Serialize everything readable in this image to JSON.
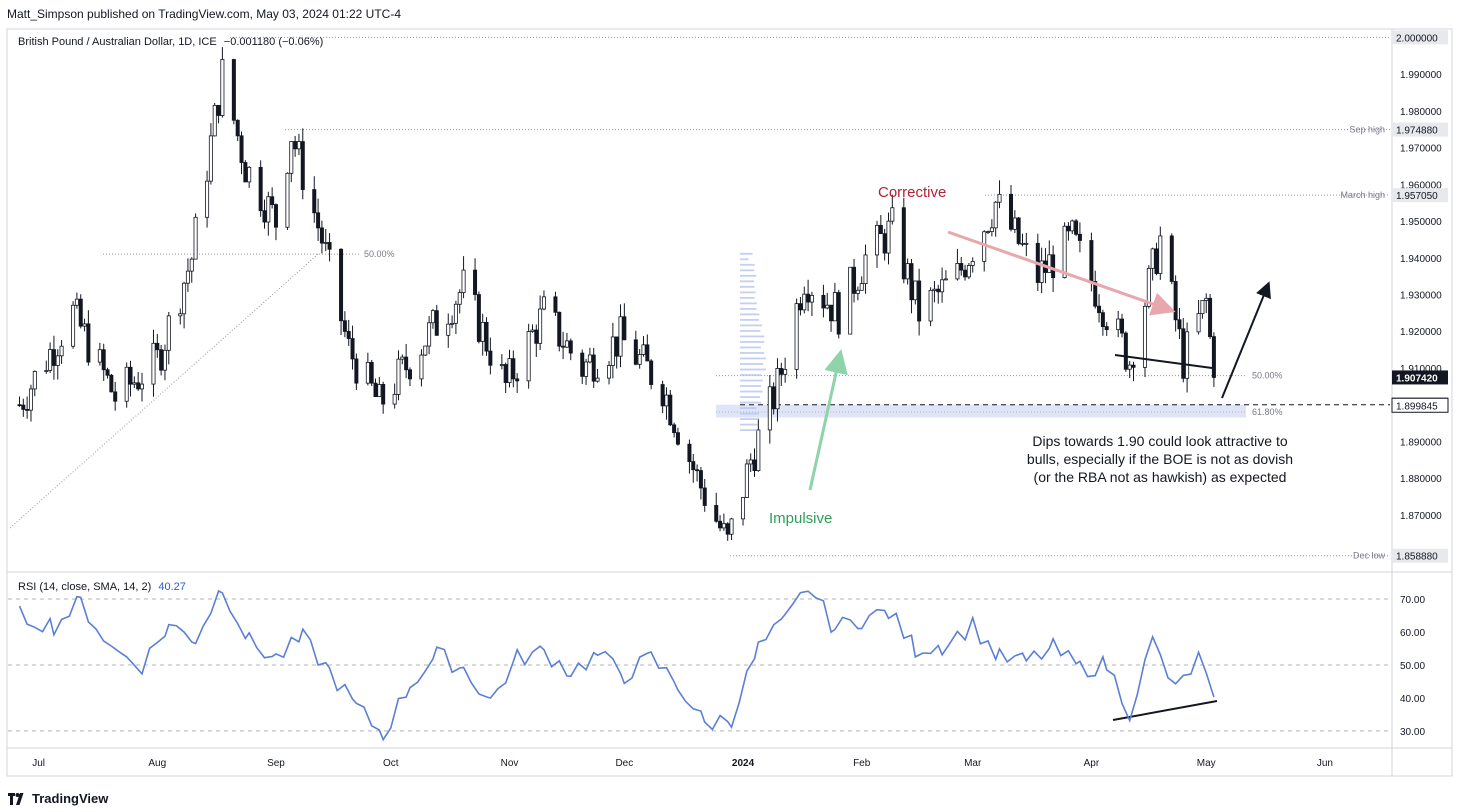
{
  "header": {
    "published": "Matt_Simpson published on TradingView.com, May 03, 2024 01:22 UTC-4"
  },
  "symbol": {
    "title": "British Pound / Australian Dollar, 1D, ICE",
    "change": "−0.001180 (−0.06%)"
  },
  "rsi_legend": {
    "label": "RSI (14, close, SMA, 14, 2)",
    "value": "40.27"
  },
  "footer": {
    "brand": "TradingView"
  },
  "colors": {
    "up": "#131722",
    "down": "#131722",
    "rsi": "#5b7fd6",
    "impulsive": "#2e9e57",
    "corrective": "#b22234",
    "accent_blue": "#2a5bd7"
  },
  "chart_data": [
    {
      "type": "candlestick",
      "title": "British Pound / Australian Dollar, 1D, ICE",
      "x_labels": [
        "Jul",
        "Aug",
        "Sep",
        "Oct",
        "Nov",
        "Dec",
        "2024",
        "Feb",
        "Mar",
        "Apr",
        "May",
        "Jun"
      ],
      "ylim": [
        1.855,
        2.002
      ],
      "y_ticks": [
        "1.870000",
        "1.880000",
        "1.890000",
        "1.900000",
        "1.910000",
        "1.920000",
        "1.930000",
        "1.940000",
        "1.950000",
        "1.960000",
        "1.970000",
        "1.980000",
        "1.990000",
        "2.000000"
      ],
      "price_tags": [
        {
          "label": "",
          "value": "2.000000",
          "price": 2.0,
          "style": "gray"
        },
        {
          "label": "Sep high",
          "value": "1.974880",
          "price": 1.97488,
          "style": "gray"
        },
        {
          "label": "March high",
          "value": "1.957050",
          "price": 1.95705,
          "style": "gray"
        },
        {
          "label": "",
          "value": "1.907420",
          "price": 1.90742,
          "style": "dark"
        },
        {
          "label": "",
          "value": "1.900000",
          "price": 1.9,
          "style": "dark"
        },
        {
          "label": "",
          "value": "1.899845",
          "price": 1.899845,
          "style": "white"
        },
        {
          "label": "Dec low",
          "value": "1.858880",
          "price": 1.85888,
          "style": "gray"
        }
      ],
      "fib_levels": [
        {
          "label": "50.00%",
          "price": 1.941
        },
        {
          "label": "50.00%",
          "price": 1.9079
        },
        {
          "label": "61.80%",
          "price": 1.898
        }
      ],
      "annotations": {
        "corrective": "Corrective",
        "impulsive": "Impulsive",
        "note_lines": [
          "Dips towards 1.90 could look attractive to",
          "bulls, especially if the BOE is not as dovish",
          "(or the RBA not as hawkish) as expected"
        ]
      },
      "price_path": [
        {
          "date": "2023-06-26",
          "close": 1.9
        },
        {
          "date": "2023-07-10",
          "close": 1.925
        },
        {
          "date": "2023-07-21",
          "close": 1.902
        },
        {
          "date": "2023-08-01",
          "close": 1.912
        },
        {
          "date": "2023-08-10",
          "close": 1.94
        },
        {
          "date": "2023-08-18",
          "close": 1.99
        },
        {
          "date": "2023-08-24",
          "close": 1.965
        },
        {
          "date": "2023-09-01",
          "close": 1.95
        },
        {
          "date": "2023-09-05",
          "close": 1.974
        },
        {
          "date": "2023-09-13",
          "close": 1.945
        },
        {
          "date": "2023-09-20",
          "close": 1.915
        },
        {
          "date": "2023-09-28",
          "close": 1.9
        },
        {
          "date": "2023-10-10",
          "close": 1.918
        },
        {
          "date": "2023-10-20",
          "close": 1.932
        },
        {
          "date": "2023-10-31",
          "close": 1.905
        },
        {
          "date": "2023-11-10",
          "close": 1.925
        },
        {
          "date": "2023-11-20",
          "close": 1.91
        },
        {
          "date": "2023-11-30",
          "close": 1.918
        },
        {
          "date": "2023-12-11",
          "close": 1.905
        },
        {
          "date": "2023-12-20",
          "close": 1.88
        },
        {
          "date": "2023-12-28",
          "close": 1.862
        },
        {
          "date": "2024-01-03",
          "close": 1.885
        },
        {
          "date": "2024-01-10",
          "close": 1.905
        },
        {
          "date": "2024-01-17",
          "close": 1.935
        },
        {
          "date": "2024-01-26",
          "close": 1.925
        },
        {
          "date": "2024-02-02",
          "close": 1.94
        },
        {
          "date": "2024-02-09",
          "close": 1.948
        },
        {
          "date": "2024-02-16",
          "close": 1.925
        },
        {
          "date": "2024-02-26",
          "close": 1.935
        },
        {
          "date": "2024-03-07",
          "close": 1.955
        },
        {
          "date": "2024-03-18",
          "close": 1.935
        },
        {
          "date": "2024-03-27",
          "close": 1.945
        },
        {
          "date": "2024-04-05",
          "close": 1.925
        },
        {
          "date": "2024-04-11",
          "close": 1.912
        },
        {
          "date": "2024-04-19",
          "close": 1.945
        },
        {
          "date": "2024-04-25",
          "close": 1.912
        },
        {
          "date": "2024-05-01",
          "close": 1.928
        },
        {
          "date": "2024-05-03",
          "close": 1.9074
        }
      ]
    },
    {
      "type": "line",
      "title": "RSI (14, close, SMA, 14, 2)",
      "ylim": [
        26,
        77
      ],
      "y_ticks": [
        "30.00",
        "40.00",
        "50.00",
        "60.00",
        "70.00"
      ],
      "dashed_levels": [
        70,
        50,
        30
      ],
      "points": [
        {
          "date": "2023-06-26",
          "value": 65
        },
        {
          "date": "2023-07-05",
          "value": 62
        },
        {
          "date": "2023-07-12",
          "value": 69
        },
        {
          "date": "2023-07-20",
          "value": 55
        },
        {
          "date": "2023-07-28",
          "value": 50
        },
        {
          "date": "2023-08-04",
          "value": 62
        },
        {
          "date": "2023-08-11",
          "value": 58
        },
        {
          "date": "2023-08-18",
          "value": 74
        },
        {
          "date": "2023-08-25",
          "value": 57
        },
        {
          "date": "2023-09-01",
          "value": 52
        },
        {
          "date": "2023-09-08",
          "value": 58
        },
        {
          "date": "2023-09-15",
          "value": 48
        },
        {
          "date": "2023-09-22",
          "value": 37
        },
        {
          "date": "2023-09-29",
          "value": 29
        },
        {
          "date": "2023-10-06",
          "value": 44
        },
        {
          "date": "2023-10-13",
          "value": 53
        },
        {
          "date": "2023-10-20",
          "value": 49
        },
        {
          "date": "2023-10-27",
          "value": 39
        },
        {
          "date": "2023-11-03",
          "value": 52
        },
        {
          "date": "2023-11-10",
          "value": 54
        },
        {
          "date": "2023-11-17",
          "value": 48
        },
        {
          "date": "2023-11-24",
          "value": 53
        },
        {
          "date": "2023-12-01",
          "value": 47
        },
        {
          "date": "2023-12-08",
          "value": 52
        },
        {
          "date": "2023-12-15",
          "value": 44
        },
        {
          "date": "2023-12-22",
          "value": 32
        },
        {
          "date": "2023-12-29",
          "value": 34
        },
        {
          "date": "2024-01-05",
          "value": 55
        },
        {
          "date": "2024-01-12",
          "value": 63
        },
        {
          "date": "2024-01-18",
          "value": 74
        },
        {
          "date": "2024-01-25",
          "value": 61
        },
        {
          "date": "2024-02-01",
          "value": 64
        },
        {
          "date": "2024-02-08",
          "value": 66
        },
        {
          "date": "2024-02-15",
          "value": 55
        },
        {
          "date": "2024-02-22",
          "value": 56
        },
        {
          "date": "2024-03-01",
          "value": 62
        },
        {
          "date": "2024-03-08",
          "value": 52
        },
        {
          "date": "2024-03-15",
          "value": 51
        },
        {
          "date": "2024-03-22",
          "value": 55
        },
        {
          "date": "2024-03-29",
          "value": 49
        },
        {
          "date": "2024-04-05",
          "value": 50
        },
        {
          "date": "2024-04-11",
          "value": 36
        },
        {
          "date": "2024-04-17",
          "value": 57
        },
        {
          "date": "2024-04-23",
          "value": 42
        },
        {
          "date": "2024-04-29",
          "value": 52
        },
        {
          "date": "2024-05-03",
          "value": 40.27
        }
      ]
    }
  ]
}
